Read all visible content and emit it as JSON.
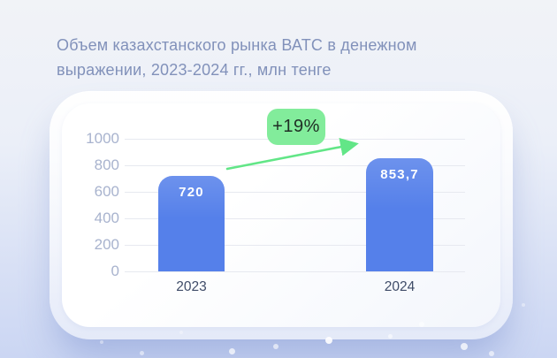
{
  "header": {
    "title": "Объем казахстанского рынка ВАТС в денежном выражении, 2023-2024 гг., млн тенге"
  },
  "chart_data": {
    "type": "bar",
    "title": "Объем казахстанского рынка ВАТС в денежном выражении, 2023-2024 гг., млн тенге",
    "categories": [
      "2023",
      "2024"
    ],
    "values": [
      720,
      853.7
    ],
    "value_labels": [
      "720",
      "853,7"
    ],
    "growth_badge": "+19%",
    "xlabel": "",
    "ylabel": "",
    "ylim": [
      0,
      1000
    ],
    "yticks": [
      0,
      200,
      400,
      600,
      800,
      1000
    ],
    "ytick_labels": [
      "0",
      "200",
      "400",
      "600",
      "800",
      "1000"
    ],
    "grid": true,
    "legend": "none",
    "colors": {
      "bar": "#5580ea",
      "badge_bg": "#82ec9b",
      "badge_text": "#1f2d24",
      "arrow": "#62e687",
      "title": "#8191ba",
      "ytick": "#a8b3ce",
      "xtick": "#3f4c68"
    }
  }
}
